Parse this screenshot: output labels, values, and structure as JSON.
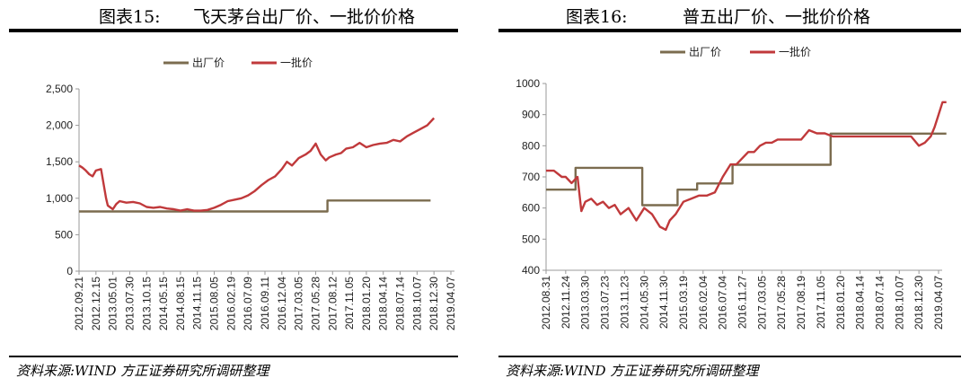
{
  "panels": [
    {
      "figure_num": "图表15:",
      "title_text": "飞天茅台出厂价、一批价价格",
      "source": "资料来源:WIND 方正证券研究所调研整理",
      "chart_data": {
        "type": "line",
        "title": "飞天茅台出厂价、一批价价格",
        "xlabel": "",
        "ylabel": "",
        "ylim": [
          0,
          2500
        ],
        "yticks": [
          0,
          500,
          1000,
          1500,
          2000,
          2500
        ],
        "ytick_labels": [
          "0",
          "500",
          "1,000",
          "1,500",
          "2,000",
          "2,500"
        ],
        "x_tick_labels": [
          "2012.09.21",
          "2012.12.15",
          "2013.05.01",
          "2013.07.30",
          "2013.10.15",
          "2014.05.15",
          "2014.08.15",
          "2014.11.15",
          "2015.08.05",
          "2016.02.19",
          "2016.07.09",
          "2016.09.11",
          "2016.12.04",
          "2017.03.05",
          "2017.05.28",
          "2017.08.12",
          "2017.11.05",
          "2018.01.20",
          "2018.04.14",
          "2018.07.14",
          "2018.10.07",
          "2018.12.30",
          "2019.04.07"
        ],
        "grid": false,
        "legend": "top-center",
        "series": [
          {
            "name": "出厂价",
            "color": "#7b6c4f",
            "x": [
              0,
              14.7,
              14.7,
              19.2,
              19.2,
              20.8,
              20.8
            ],
            "values": [
              819,
              819,
              969,
              969,
              969,
              969,
              969
            ]
          },
          {
            "name": "一批价",
            "color": "#c0393b",
            "x": [
              0,
              0.2,
              0.4,
              0.6,
              0.8,
              1.0,
              1.3,
              1.6,
              1.7,
              2.0,
              2.2,
              2.4,
              2.8,
              3.2,
              3.6,
              4.0,
              4.4,
              4.8,
              5.2,
              5.6,
              6.0,
              6.4,
              6.8,
              7.2,
              7.6,
              8.0,
              8.4,
              8.8,
              9.2,
              9.6,
              10.0,
              10.4,
              10.8,
              11.2,
              11.6,
              12.0,
              12.3,
              12.6,
              13.0,
              13.4,
              13.7,
              14.0,
              14.3,
              14.6,
              14.8,
              15.0,
              15.2,
              15.5,
              15.8,
              16.2,
              16.6,
              17.0,
              17.4,
              17.8,
              18.2,
              18.6,
              19.0,
              19.4,
              19.8,
              20.2,
              20.6,
              21.0
            ],
            "values": [
              1450,
              1420,
              1380,
              1330,
              1300,
              1380,
              1400,
              1000,
              900,
              850,
              920,
              960,
              940,
              950,
              930,
              880,
              870,
              880,
              860,
              850,
              830,
              850,
              830,
              830,
              840,
              870,
              910,
              960,
              980,
              1000,
              1040,
              1100,
              1180,
              1250,
              1300,
              1400,
              1500,
              1450,
              1550,
              1600,
              1650,
              1750,
              1600,
              1520,
              1560,
              1580,
              1600,
              1620,
              1680,
              1700,
              1760,
              1700,
              1730,
              1750,
              1760,
              1800,
              1780,
              1850,
              1900,
              1950,
              2000,
              2100
            ]
          }
        ]
      }
    },
    {
      "figure_num": "图表16:",
      "title_text": "普五出厂价、一批价价格",
      "source": "资料来源:WIND 方正证券研究所调研整理",
      "chart_data": {
        "type": "line",
        "title": "普五出厂价、一批价价格",
        "xlabel": "",
        "ylabel": "",
        "ylim": [
          400,
          1000
        ],
        "yticks": [
          400,
          500,
          600,
          700,
          800,
          900,
          1000
        ],
        "ytick_labels": [
          "400",
          "500",
          "600",
          "700",
          "800",
          "900",
          "1000"
        ],
        "x_tick_labels": [
          "2012.08.31",
          "2012.11.24",
          "2013.03.30",
          "2013.07.23",
          "2013.11.23",
          "2014.05.30",
          "2014.11.30",
          "2015.03.19",
          "2016.02.04",
          "2016.07.04",
          "2016.11.27",
          "2017.03.05",
          "2017.05.28",
          "2017.08.19",
          "2017.11.05",
          "2018.01.20",
          "2018.04.14",
          "2018.07.14",
          "2018.10.07",
          "2018.12.30",
          "2019.04.07"
        ],
        "grid": false,
        "legend": "top-center",
        "series": [
          {
            "name": "出厂价",
            "color": "#7b6c4f",
            "x": [
              0,
              1.5,
              1.5,
              4.9,
              4.9,
              6.7,
              6.7,
              7.7,
              7.7,
              9.5,
              9.5,
              14.5,
              14.5,
              20.4
            ],
            "values": [
              659,
              659,
              729,
              729,
              609,
              609,
              659,
              659,
              679,
              679,
              739,
              739,
              839,
              839
            ]
          },
          {
            "name": "一批价",
            "color": "#c0393b",
            "x": [
              0,
              0.4,
              0.8,
              1.0,
              1.3,
              1.6,
              1.8,
              2.0,
              2.3,
              2.6,
              2.9,
              3.2,
              3.5,
              3.8,
              4.2,
              4.6,
              5.0,
              5.4,
              5.8,
              6.1,
              6.3,
              6.6,
              7.0,
              7.4,
              7.8,
              8.2,
              8.6,
              9.0,
              9.4,
              9.7,
              10.0,
              10.3,
              10.6,
              10.9,
              11.2,
              11.5,
              11.8,
              12.2,
              12.6,
              13.0,
              13.4,
              13.8,
              14.2,
              14.6,
              15.0,
              15.4,
              15.8,
              16.2,
              16.6,
              17.0,
              17.4,
              17.8,
              18.2,
              18.6,
              19.0,
              19.3,
              19.6,
              19.8,
              20.0,
              20.2,
              20.4
            ],
            "values": [
              720,
              720,
              700,
              700,
              680,
              700,
              590,
              620,
              630,
              610,
              620,
              600,
              610,
              580,
              600,
              560,
              600,
              580,
              540,
              530,
              560,
              580,
              620,
              630,
              640,
              640,
              650,
              700,
              740,
              740,
              760,
              780,
              780,
              800,
              810,
              810,
              820,
              820,
              820,
              820,
              850,
              840,
              840,
              830,
              830,
              830,
              830,
              830,
              830,
              830,
              830,
              830,
              830,
              830,
              800,
              810,
              830,
              860,
              900,
              940,
              940
            ]
          }
        ]
      }
    }
  ]
}
